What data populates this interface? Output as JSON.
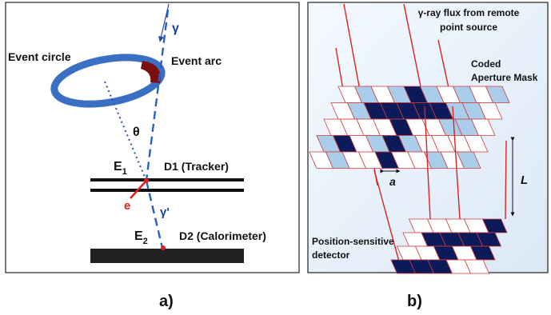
{
  "panel_a": {
    "caption": "a)",
    "event_circle": "Event circle",
    "event_arc": "Event arc",
    "gamma": "γ",
    "theta": "θ",
    "e1_base": "E",
    "e1_sub": "1",
    "d1": "D1 (Tracker)",
    "electron": "e",
    "gamma_prime": "γ'",
    "e2_base": "E",
    "e2_sub": "2",
    "d2": "D2 (Calorimeter)"
  },
  "panel_b": {
    "caption": "b)",
    "flux_line1": "γ-ray flux from remote",
    "flux_line2": "point source",
    "mask_line1": "Coded",
    "mask_line2": "Aperture Mask",
    "pitch": "a",
    "distance": "L",
    "detector_line1": "Position-sensitive",
    "detector_line2": "detector"
  },
  "colors": {
    "ring": "#3a6fc4",
    "arc": "#7a1010",
    "red": "#e0201e",
    "navy": "#0c1a5a",
    "light_blue": "#a9cdea",
    "panel_b_bg": "#eaf3fb"
  },
  "mask_pattern": [
    [
      0,
      1,
      0,
      1,
      2,
      1,
      0,
      1,
      0,
      1
    ],
    [
      0,
      1,
      2,
      2,
      2,
      2,
      2,
      1,
      1,
      0
    ],
    [
      0,
      0,
      0,
      0,
      2,
      0,
      0,
      1,
      1,
      0
    ],
    [
      1,
      2,
      0,
      1,
      2,
      1,
      0,
      0,
      0,
      0
    ],
    [
      0,
      1,
      0,
      0,
      2,
      0,
      0,
      1,
      0,
      1
    ]
  ],
  "detector_pattern": [
    [
      0,
      0,
      0,
      0,
      2
    ],
    [
      0,
      2,
      2,
      2,
      2
    ],
    [
      0,
      0,
      2,
      0,
      2
    ],
    [
      2,
      2,
      2,
      0,
      0
    ]
  ]
}
